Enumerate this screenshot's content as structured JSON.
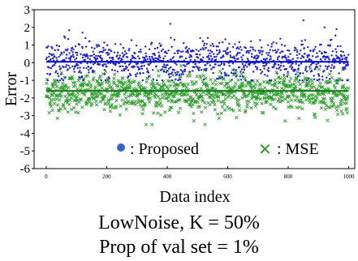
{
  "chart_data": {
    "type": "scatter",
    "xlabel": "Data index",
    "ylabel": "Error",
    "xlim": [
      -40,
      1020
    ],
    "ylim": [
      -6,
      3
    ],
    "xticks": [
      0,
      200,
      400,
      600,
      800,
      1000
    ],
    "yticks": [
      3,
      2,
      1,
      0,
      -1,
      -2,
      -3,
      -4,
      -5,
      -6
    ],
    "ytick_labels": [
      "3",
      "2",
      "1",
      "0",
      "-1",
      "-2",
      "-3",
      "-4",
      "-5",
      "-6"
    ],
    "grid": false,
    "legend_position": "lower-center",
    "series": [
      {
        "name": ": Proposed",
        "marker": "dot",
        "color": "#1f1fe6",
        "center": 0.1,
        "spread": 0.55,
        "range": [
          -1.0,
          2.4
        ],
        "mean_line": 0.05,
        "n_points": 1000,
        "highlights": [
          [
            410,
            2.2
          ],
          [
            850,
            2.4
          ],
          [
            120,
            1.7
          ],
          [
            60,
            1.5
          ],
          [
            920,
            2.0
          ],
          [
            960,
            1.9
          ]
        ]
      },
      {
        "name": ": MSE",
        "marker": "x",
        "color": "#2aa02a",
        "center": -1.7,
        "spread": 0.55,
        "range": [
          -3.5,
          0.0
        ],
        "mean_line": -1.6,
        "n_points": 1000,
        "highlights": [
          [
            330,
            -3.5
          ],
          [
            790,
            -3.3
          ],
          [
            20,
            -2.7
          ],
          [
            980,
            -2.9
          ]
        ]
      }
    ]
  },
  "caption": {
    "line1": "LowNoise, K = 50%",
    "line2": "Prop of val set = 1%"
  }
}
